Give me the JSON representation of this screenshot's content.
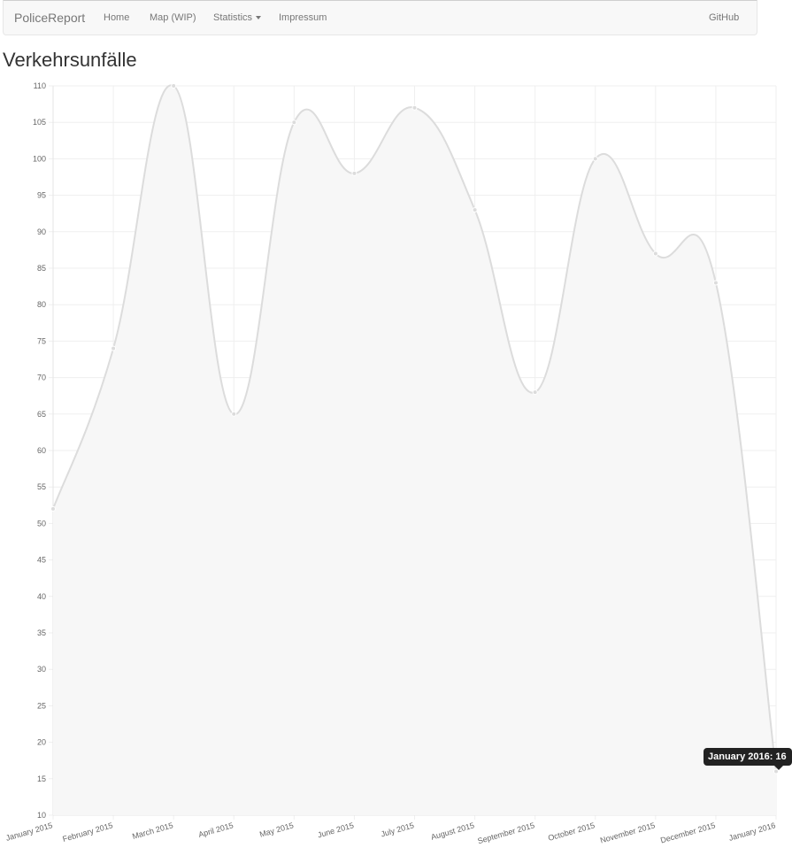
{
  "navbar": {
    "brand": "PoliceReport",
    "items": [
      {
        "label": "Home"
      },
      {
        "label": "Map (WIP)"
      },
      {
        "label": "Statistics"
      },
      {
        "label": "Impressum"
      }
    ],
    "right": {
      "label": "GitHub"
    }
  },
  "page": {
    "title": "Verkehrsunfälle"
  },
  "chart_data": {
    "type": "line",
    "fill": true,
    "categories": [
      "January 2015",
      "February 2015",
      "March 2015",
      "April 2015",
      "May 2015",
      "June 2015",
      "July 2015",
      "August 2015",
      "September 2015",
      "October 2015",
      "November 2015",
      "December 2015",
      "January 2016"
    ],
    "values": [
      52,
      74,
      110,
      65,
      105,
      98,
      107,
      93,
      68,
      100,
      87,
      83,
      16
    ],
    "ylim": [
      10,
      110
    ],
    "ytick_step": 5,
    "grid": true,
    "line_color": "#dcdcdc",
    "fill_color": "#f7f7f7",
    "point_color": "#dcdcdc",
    "tooltip": {
      "label": "January 2016: 16"
    }
  }
}
